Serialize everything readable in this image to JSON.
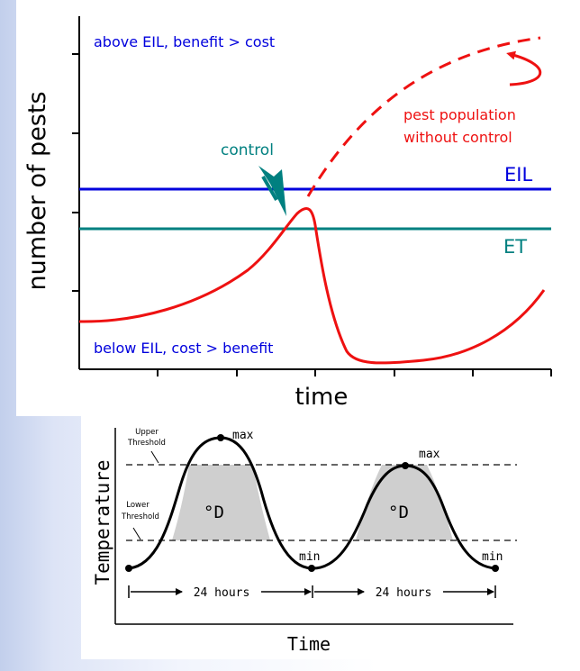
{
  "top_chart": {
    "y_axis_label": "number of pests",
    "x_axis_label": "time",
    "above_text": "above EIL, benefit > cost",
    "below_text": "below EIL, cost > benefit",
    "eil_label": "EIL",
    "et_label": "ET",
    "control_label": "control",
    "uncontrolled_label_line1": "pest population",
    "uncontrolled_label_line2": "without control",
    "colors": {
      "eil": "#0000dd",
      "et": "#008080",
      "pest_curve": "#ee1111",
      "text_blue": "#0000dd"
    }
  },
  "bottom_chart": {
    "y_axis_label": "Temperature",
    "x_axis_label": "Time",
    "upper_threshold_line1": "Upper",
    "upper_threshold_line2": "Threshold",
    "lower_threshold_line1": "Lower",
    "lower_threshold_line2": "Threshold",
    "max_label_1": "max",
    "max_label_2": "max",
    "min_label_1": "min",
    "min_label_2": "min",
    "degree_day_label_1": "°D",
    "degree_day_label_2": "°D",
    "interval_label_1": "24 hours",
    "interval_label_2": "24 hours"
  }
}
